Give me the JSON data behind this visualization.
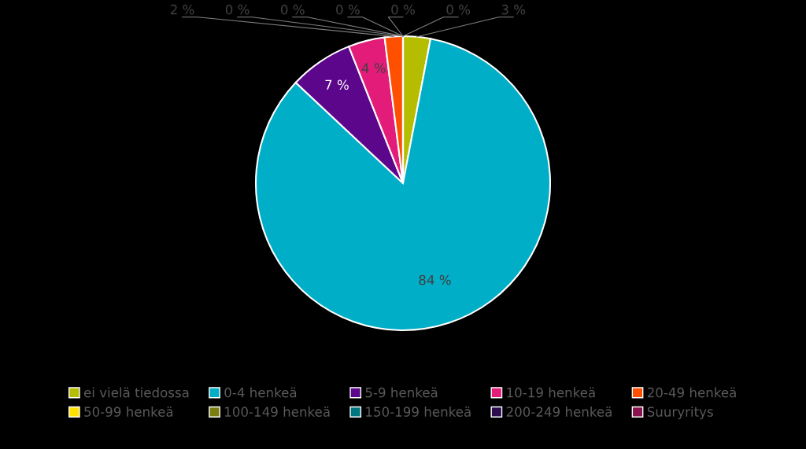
{
  "chart_data": {
    "type": "pie",
    "categories": [
      "ei vielä tiedossa",
      "0-4 henkeä",
      "5-9 henkeä",
      "10-19 henkeä",
      "20-49 henkeä",
      "50-99 henkeä",
      "100-149 henkeä",
      "150-199 henkeä",
      "200-249 henkeä",
      "Suuryritys"
    ],
    "values": [
      3,
      84,
      7,
      4,
      2,
      0,
      0,
      0,
      0,
      0
    ],
    "colors": [
      "#b5bd00",
      "#00aec7",
      "#5c068c",
      "#e31c79",
      "#fe5000",
      "#ffe100",
      "#7a7d10",
      "#007780",
      "#2d0b50",
      "#8a1450"
    ],
    "value_labels": [
      "3 %",
      "84 %",
      "7 %",
      "4 %",
      "2 %",
      "0 %",
      "0 %",
      "0 %",
      "0 %",
      "0 %"
    ],
    "legend": "bottom"
  }
}
